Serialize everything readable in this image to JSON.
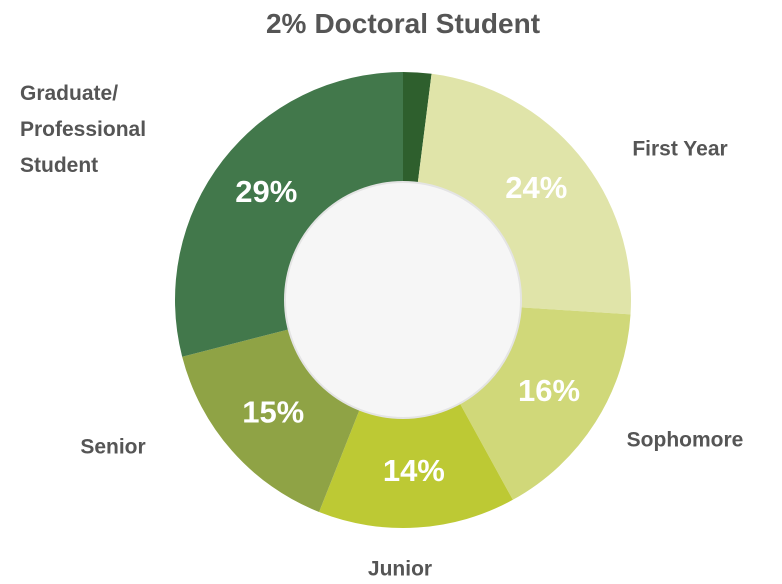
{
  "chart_data": {
    "type": "donut",
    "categories": [
      "Doctoral Student",
      "First Year",
      "Sophomore",
      "Junior",
      "Senior",
      "Graduate/ Professional Student"
    ],
    "values": [
      2,
      24,
      16,
      14,
      15,
      29
    ],
    "value_labels": [
      "2%",
      "24%",
      "16%",
      "14%",
      "15%",
      "29%"
    ],
    "colors": [
      "#2e5f2d",
      "#e0e4a9",
      "#d0d879",
      "#bdc934",
      "#8fa345",
      "#42784b"
    ]
  }
}
